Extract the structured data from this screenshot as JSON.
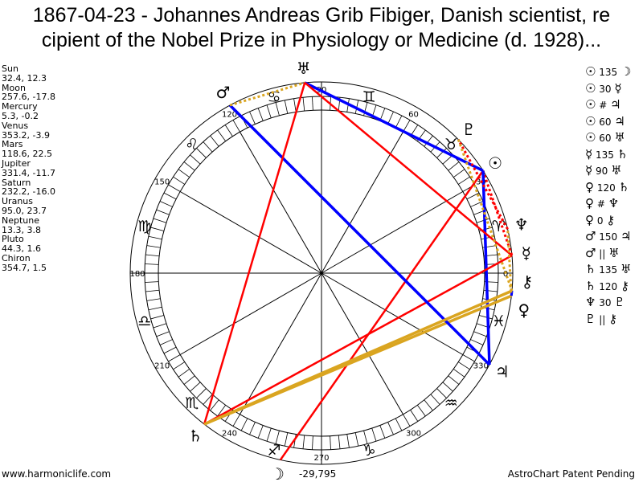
{
  "title": "1867-04-23 - Johannes Andreas Grib Fibiger, Danish scientist, recipient of the Nobel Prize in Physiology or Medicine (d. 1928)...",
  "title_lines": [
    "1867-04-23 - Johannes Andreas Grib Fibiger, Danish scientist, re",
    "cipient of the Nobel Prize in Physiology or Medicine (d. 1928)..."
  ],
  "planets": [
    {
      "name": "Sun",
      "glyph": "☉",
      "lon": 32.4,
      "dec": 12.3,
      "text": "32.4, 12.3"
    },
    {
      "name": "Moon",
      "glyph": "☽",
      "lon": 257.6,
      "dec": -17.8,
      "text": "257.6, -17.8"
    },
    {
      "name": "Mercury",
      "glyph": "☿",
      "lon": 5.3,
      "dec": -0.2,
      "text": "5.3, -0.2"
    },
    {
      "name": "Venus",
      "glyph": "♀",
      "lon": 353.2,
      "dec": -3.9,
      "text": "353.2, -3.9"
    },
    {
      "name": "Mars",
      "glyph": "♂",
      "lon": 118.6,
      "dec": 22.5,
      "text": "118.6, 22.5"
    },
    {
      "name": "Jupiter",
      "glyph": "♃",
      "lon": 331.4,
      "dec": -11.7,
      "text": "331.4, -11.7"
    },
    {
      "name": "Saturn",
      "glyph": "♄",
      "lon": 232.2,
      "dec": -16.0,
      "text": "232.2, -16.0"
    },
    {
      "name": "Uranus",
      "glyph": "♅",
      "lon": 95.0,
      "dec": 23.7,
      "text": "95.0, 23.7"
    },
    {
      "name": "Neptune",
      "glyph": "♆",
      "lon": 13.3,
      "dec": 3.8,
      "text": "13.3, 3.8"
    },
    {
      "name": "Pluto",
      "glyph": "♇",
      "lon": 44.3,
      "dec": 1.6,
      "text": "44.3, 1.6"
    },
    {
      "name": "Chiron",
      "glyph": "⚷",
      "lon": 354.7,
      "dec": 1.5,
      "text": "354.7, 1.5"
    }
  ],
  "aspects": [
    {
      "a": "☉",
      "type": "135",
      "b": "☽",
      "p1": 0,
      "p2": 1
    },
    {
      "a": "☉",
      "type": "30",
      "b": "☿",
      "p1": 0,
      "p2": 2
    },
    {
      "a": "☉",
      "type": "#",
      "b": "♃",
      "p1": 0,
      "p2": 5
    },
    {
      "a": "☉",
      "type": "60",
      "b": "♃",
      "p1": 0,
      "p2": 5
    },
    {
      "a": "☉",
      "type": "60",
      "b": "♅",
      "p1": 0,
      "p2": 7
    },
    {
      "a": "☿",
      "type": "135",
      "b": "♄",
      "p1": 2,
      "p2": 6
    },
    {
      "a": "☿",
      "type": "90",
      "b": "♅",
      "p1": 2,
      "p2": 7
    },
    {
      "a": "♀",
      "type": "120",
      "b": "♄",
      "p1": 3,
      "p2": 6
    },
    {
      "a": "♀",
      "type": "#",
      "b": "♆",
      "p1": 3,
      "p2": 8
    },
    {
      "a": "♀",
      "type": "0",
      "b": "⚷",
      "p1": 3,
      "p2": 10
    },
    {
      "a": "♂",
      "type": "150",
      "b": "♃",
      "p1": 4,
      "p2": 5
    },
    {
      "a": "♂",
      "type": "||",
      "b": "♅",
      "p1": 4,
      "p2": 7
    },
    {
      "a": "♄",
      "type": "135",
      "b": "♅",
      "p1": 6,
      "p2": 7
    },
    {
      "a": "♄",
      "type": "120",
      "b": "⚷",
      "p1": 6,
      "p2": 10
    },
    {
      "a": "♆",
      "type": "30",
      "b": "♇",
      "p1": 8,
      "p2": 9
    },
    {
      "a": "♇",
      "type": "||",
      "b": "⚷",
      "p1": 9,
      "p2": 10
    }
  ],
  "signs": [
    "♈",
    "♉",
    "♊",
    "♋",
    "♌",
    "♍",
    "♎",
    "♏",
    "♐",
    "♑",
    "♒",
    "♓"
  ],
  "degree_labels": [
    "0",
    "30",
    "60",
    "90",
    "120",
    "150",
    "180",
    "210",
    "240",
    "270",
    "300",
    "330"
  ],
  "colors": {
    "red": "#ff0000",
    "blue": "#0000ff",
    "gold": "#daa520",
    "orange": "#daa520"
  },
  "footer": {
    "site": "www.harmoniclife.com",
    "center_value": "-29,795",
    "patent": "AstroChart Patent Pending"
  }
}
